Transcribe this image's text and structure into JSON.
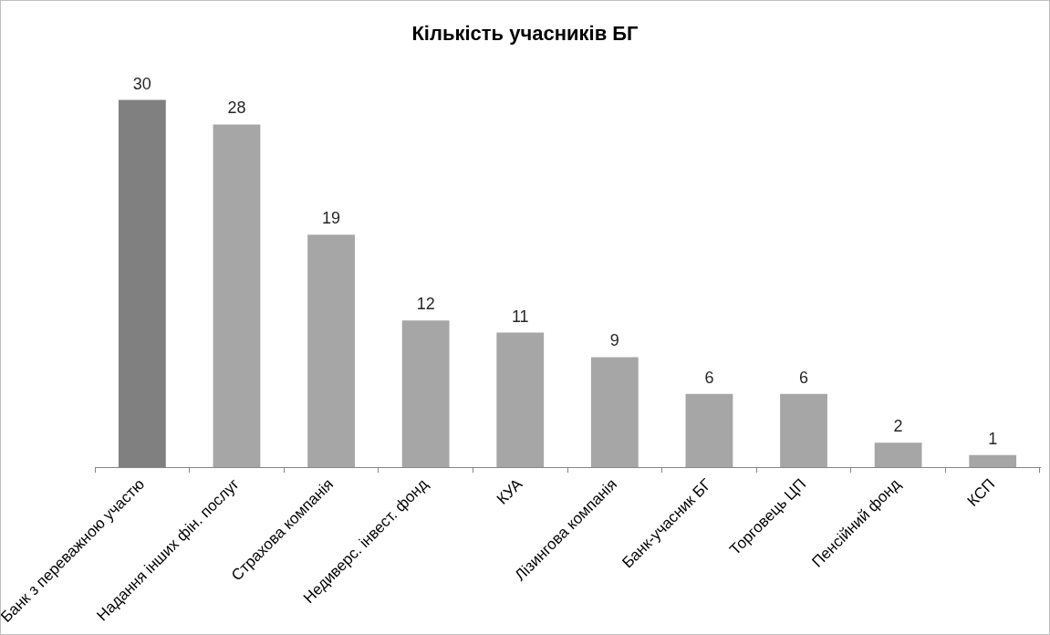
{
  "chart_data": {
    "type": "bar",
    "title": "Кількість учасників БГ",
    "categories": [
      "Банк з переважною участю",
      "Надання інших фін. послуг",
      "Страхова компанія",
      "Недиверс. інвест. фонд",
      "КУА",
      "Лізингова компанія",
      "Банк-учасник БГ",
      "Торговець ЦП",
      "Пенсійний фонд",
      "КСП"
    ],
    "values": [
      30,
      28,
      19,
      12,
      11,
      9,
      6,
      6,
      2,
      1
    ],
    "colors": [
      "#808080",
      "#a6a6a6",
      "#a6a6a6",
      "#a6a6a6",
      "#a6a6a6",
      "#a6a6a6",
      "#a6a6a6",
      "#a6a6a6",
      "#a6a6a6",
      "#a6a6a6"
    ],
    "data_labels": true,
    "grid": false,
    "legend": false
  }
}
